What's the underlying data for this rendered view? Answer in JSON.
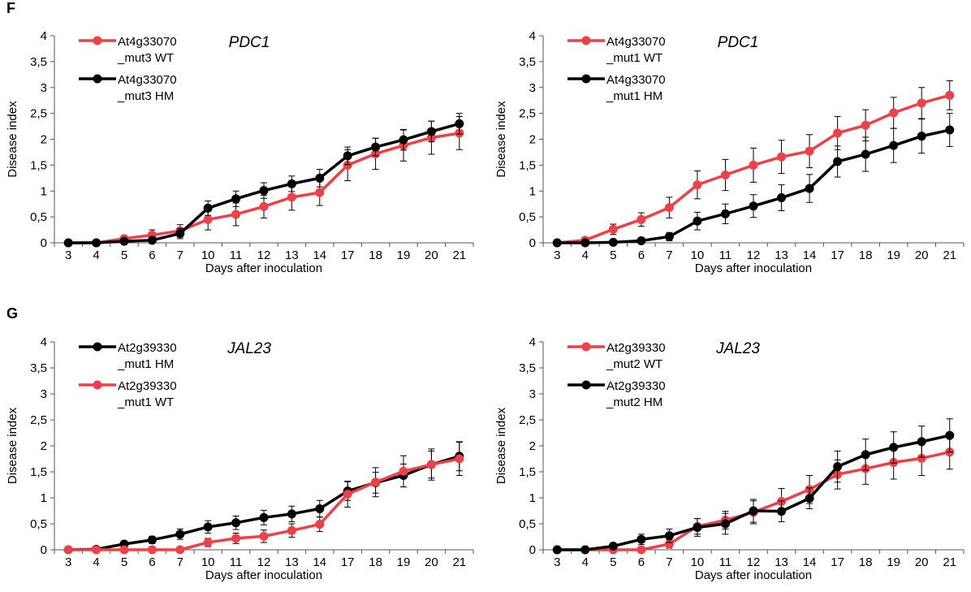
{
  "panels": {
    "F": "F",
    "G": "G"
  },
  "colors": {
    "wt": "#ef3f47",
    "hm": "#000000",
    "axis": "#555555"
  },
  "chart_data": [
    {
      "type": "line",
      "panel": "F",
      "title": "PDC1",
      "xlabel": "Days after inoculation",
      "ylabel": "Disease index",
      "categories": [
        "3",
        "4",
        "5",
        "6",
        "7",
        "10",
        "11",
        "12",
        "13",
        "14",
        "17",
        "18",
        "19",
        "20",
        "21"
      ],
      "ylim": [
        0,
        4
      ],
      "yticks": [
        "0",
        "0,5",
        "1",
        "1,5",
        "2",
        "2,5",
        "3",
        "3,5",
        "4"
      ],
      "legend_position": "top-left",
      "series": [
        {
          "name": "At4g33070 _mut3 WT",
          "color": "#ef3f47",
          "values": [
            0,
            0,
            0.08,
            0.15,
            0.23,
            0.45,
            0.55,
            0.7,
            0.88,
            0.97,
            1.5,
            1.72,
            1.88,
            2.03,
            2.12
          ],
          "errors": [
            0,
            0,
            0.05,
            0.1,
            0.12,
            0.2,
            0.22,
            0.22,
            0.25,
            0.25,
            0.3,
            0.3,
            0.3,
            0.32,
            0.32
          ]
        },
        {
          "name": "At4g33070 _mut3 HM",
          "color": "#000000",
          "values": [
            0,
            0,
            0.03,
            0.05,
            0.18,
            0.67,
            0.85,
            1.01,
            1.14,
            1.25,
            1.68,
            1.85,
            1.99,
            2.15,
            2.3
          ],
          "errors": [
            0,
            0,
            0.04,
            0.06,
            0.1,
            0.14,
            0.15,
            0.15,
            0.15,
            0.17,
            0.17,
            0.17,
            0.2,
            0.2,
            0.2
          ]
        }
      ]
    },
    {
      "type": "line",
      "panel": "F",
      "title": "PDC1",
      "xlabel": "Days after inoculation",
      "ylabel": "Disease index",
      "categories": [
        "3",
        "4",
        "5",
        "6",
        "7",
        "10",
        "11",
        "12",
        "13",
        "14",
        "17",
        "18",
        "19",
        "20",
        "21"
      ],
      "ylim": [
        0,
        4
      ],
      "yticks": [
        "0",
        "0,5",
        "1",
        "1,5",
        "2",
        "2,5",
        "3",
        "3,5",
        "4"
      ],
      "legend_position": "top-left",
      "series": [
        {
          "name": "At4g33070 _mut1 WT",
          "color": "#ef3f47",
          "values": [
            0,
            0.05,
            0.26,
            0.45,
            0.68,
            1.12,
            1.31,
            1.5,
            1.66,
            1.77,
            2.12,
            2.27,
            2.51,
            2.7,
            2.85
          ],
          "errors": [
            0,
            0.03,
            0.1,
            0.13,
            0.2,
            0.27,
            0.3,
            0.33,
            0.32,
            0.32,
            0.32,
            0.3,
            0.3,
            0.3,
            0.28
          ]
        },
        {
          "name": "At4g33070 _mut1 HM",
          "color": "#000000",
          "values": [
            0,
            0,
            0.01,
            0.04,
            0.12,
            0.42,
            0.56,
            0.71,
            0.87,
            1.05,
            1.57,
            1.71,
            1.88,
            2.06,
            2.18
          ],
          "errors": [
            0,
            0,
            0.02,
            0.04,
            0.08,
            0.17,
            0.19,
            0.22,
            0.25,
            0.27,
            0.3,
            0.33,
            0.33,
            0.33,
            0.32
          ]
        }
      ]
    },
    {
      "type": "line",
      "panel": "G",
      "title": "JAL23",
      "xlabel": "Days after inoculation",
      "ylabel": "Disease index",
      "categories": [
        "3",
        "4",
        "5",
        "6",
        "7",
        "10",
        "11",
        "12",
        "13",
        "14",
        "17",
        "18",
        "19",
        "20",
        "21"
      ],
      "ylim": [
        0,
        4
      ],
      "yticks": [
        "0",
        "0,5",
        "1",
        "1,5",
        "2",
        "2,5",
        "3",
        "3,5",
        "4"
      ],
      "legend_position": "top-left",
      "series": [
        {
          "name": "At2g39330 _mut1 HM",
          "color": "#000000",
          "values": [
            0,
            0.01,
            0.11,
            0.19,
            0.3,
            0.44,
            0.52,
            0.62,
            0.69,
            0.79,
            1.13,
            1.29,
            1.43,
            1.64,
            1.8
          ],
          "errors": [
            0,
            0.01,
            0.05,
            0.07,
            0.1,
            0.12,
            0.13,
            0.14,
            0.15,
            0.16,
            0.18,
            0.2,
            0.22,
            0.26,
            0.28
          ]
        },
        {
          "name": "At2g39330 _mut1 WT",
          "color": "#ef3f47",
          "values": [
            0,
            0,
            0,
            0,
            0,
            0.14,
            0.22,
            0.26,
            0.37,
            0.49,
            1.07,
            1.3,
            1.51,
            1.64,
            1.75
          ],
          "errors": [
            0,
            0,
            0,
            0,
            0,
            0.08,
            0.1,
            0.12,
            0.13,
            0.14,
            0.25,
            0.28,
            0.3,
            0.3,
            0.32
          ]
        }
      ]
    },
    {
      "type": "line",
      "panel": "G",
      "title": "JAL23",
      "xlabel": "Days after inoculation",
      "ylabel": "Disease index",
      "categories": [
        "3",
        "4",
        "5",
        "6",
        "7",
        "10",
        "11",
        "12",
        "13",
        "14",
        "17",
        "18",
        "19",
        "20",
        "21"
      ],
      "ylim": [
        0,
        4
      ],
      "yticks": [
        "0",
        "0,5",
        "1",
        "1,5",
        "2",
        "2,5",
        "3",
        "3,5",
        "4"
      ],
      "legend_position": "top-left",
      "series": [
        {
          "name": "At2g39330 _mut2 WT",
          "color": "#ef3f47",
          "values": [
            0,
            0,
            0,
            0,
            0.11,
            0.45,
            0.57,
            0.72,
            0.93,
            1.16,
            1.45,
            1.56,
            1.68,
            1.76,
            1.88
          ],
          "errors": [
            0,
            0,
            0,
            0,
            0.08,
            0.15,
            0.17,
            0.22,
            0.25,
            0.27,
            0.28,
            0.3,
            0.32,
            0.33,
            0.33
          ]
        },
        {
          "name": "At2g39330 _mut2 HM",
          "color": "#000000",
          "values": [
            0,
            0,
            0.07,
            0.2,
            0.27,
            0.43,
            0.5,
            0.75,
            0.74,
            0.99,
            1.6,
            1.83,
            1.97,
            2.08,
            2.2
          ],
          "errors": [
            0,
            0,
            0.05,
            0.1,
            0.13,
            0.17,
            0.2,
            0.22,
            0.2,
            0.2,
            0.3,
            0.3,
            0.3,
            0.3,
            0.32
          ]
        }
      ]
    }
  ]
}
